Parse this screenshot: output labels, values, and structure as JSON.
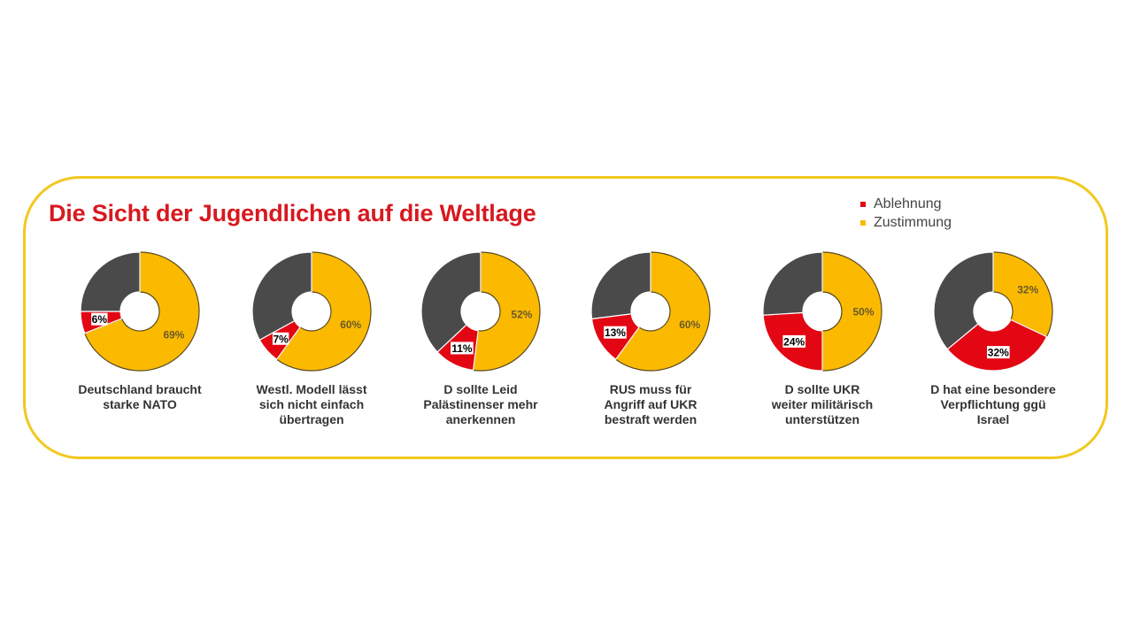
{
  "chart_data": {
    "type": "pie",
    "title": "Die Sicht der Jugendlichen auf die Weltlage",
    "legend": {
      "placement": "top-right",
      "entries": [
        {
          "name": "Ablehnung",
          "color": "#e30613"
        },
        {
          "name": "Zustimmung",
          "color": "#fbba00"
        }
      ]
    },
    "colors": {
      "ablehnung": "#e30613",
      "zustimmung": "#fbba00",
      "rest": "#4a4a4a"
    },
    "charts": [
      {
        "caption": [
          "Deutschland braucht",
          "starke NATO"
        ],
        "zustimmung": 69,
        "ablehnung": 6,
        "zustimmung_label": "69%",
        "ablehnung_label": "6%"
      },
      {
        "caption": [
          "Westl. Modell lässt",
          "sich nicht einfach",
          "übertragen"
        ],
        "zustimmung": 60,
        "ablehnung": 7,
        "zustimmung_label": "60%",
        "ablehnung_label": "7%"
      },
      {
        "caption": [
          "D sollte Leid",
          "Palästinenser mehr",
          "anerkennen"
        ],
        "zustimmung": 52,
        "ablehnung": 11,
        "zustimmung_label": "52%",
        "ablehnung_label": "11%"
      },
      {
        "caption": [
          "RUS muss für",
          "Angriff auf UKR",
          "bestraft werden"
        ],
        "zustimmung": 60,
        "ablehnung": 13,
        "zustimmung_label": "60%",
        "ablehnung_label": "13%"
      },
      {
        "caption": [
          "D sollte UKR",
          "weiter militärisch",
          "unterstützen"
        ],
        "zustimmung": 50,
        "ablehnung": 24,
        "zustimmung_label": "50%",
        "ablehnung_label": "24%"
      },
      {
        "caption": [
          "D hat eine besondere",
          "Verpflichtung ggü",
          "Israel"
        ],
        "zustimmung": 32,
        "ablehnung": 32,
        "zustimmung_label": "32%",
        "ablehnung_label": "32%"
      }
    ]
  }
}
